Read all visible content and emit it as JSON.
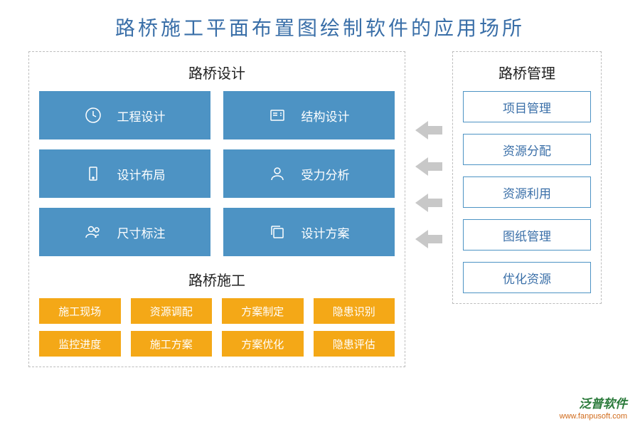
{
  "title": "路桥施工平面布置图绘制软件的应用场所",
  "title_color": "#3a6fa8",
  "colors": {
    "blue_tile": "#4d93c4",
    "orange_tile": "#f4a817",
    "mgmt_border": "#4d93c4",
    "mgmt_text": "#3a6fa8",
    "arrow": "#c8c8c8",
    "dashed_border": "#bdbdbd"
  },
  "design": {
    "title": "路桥设计",
    "tiles": [
      {
        "label": "工程设计",
        "icon": "clock"
      },
      {
        "label": "结构设计",
        "icon": "form"
      },
      {
        "label": "设计布局",
        "icon": "device"
      },
      {
        "label": "受力分析",
        "icon": "person"
      },
      {
        "label": "尺寸标注",
        "icon": "people"
      },
      {
        "label": "设计方案",
        "icon": "stack"
      }
    ]
  },
  "construction": {
    "title": "路桥施工",
    "tiles": [
      "施工现场",
      "资源调配",
      "方案制定",
      "隐患识别",
      "监控进度",
      "施工方案",
      "方案优化",
      "隐患评估"
    ]
  },
  "management": {
    "title": "路桥管理",
    "items": [
      "项目管理",
      "资源分配",
      "资源利用",
      "图纸管理",
      "优化资源"
    ]
  },
  "watermark": {
    "brand": "泛普软件",
    "brand_color": "#2a7a3a",
    "url": "www.fanpusoft.com",
    "url_color": "#d06a1a"
  }
}
